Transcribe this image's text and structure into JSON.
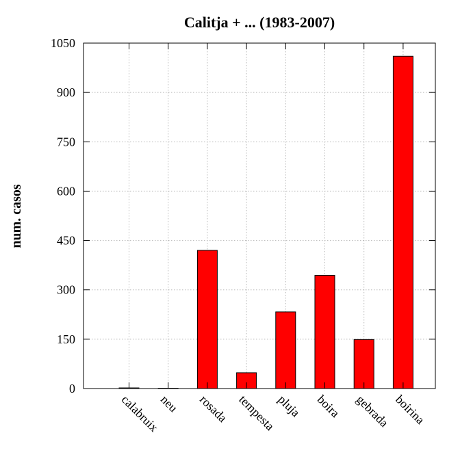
{
  "chart_data": {
    "type": "bar",
    "title": "Calitja + ... (1983-2007)",
    "xlabel": "",
    "ylabel": "num. casos",
    "categories": [
      "calabruix",
      "neu",
      "rosada",
      "tempesta",
      "pluja",
      "boira",
      "gebrada",
      "boirina"
    ],
    "values": [
      2,
      1,
      420,
      48,
      233,
      344,
      149,
      1010
    ],
    "ylim": [
      0,
      1050
    ],
    "yticks": [
      "0",
      "150",
      "300",
      "450",
      "600",
      "750",
      "900",
      "1050"
    ],
    "grid": true,
    "bar_color": "#ff0000",
    "legend": "none"
  }
}
